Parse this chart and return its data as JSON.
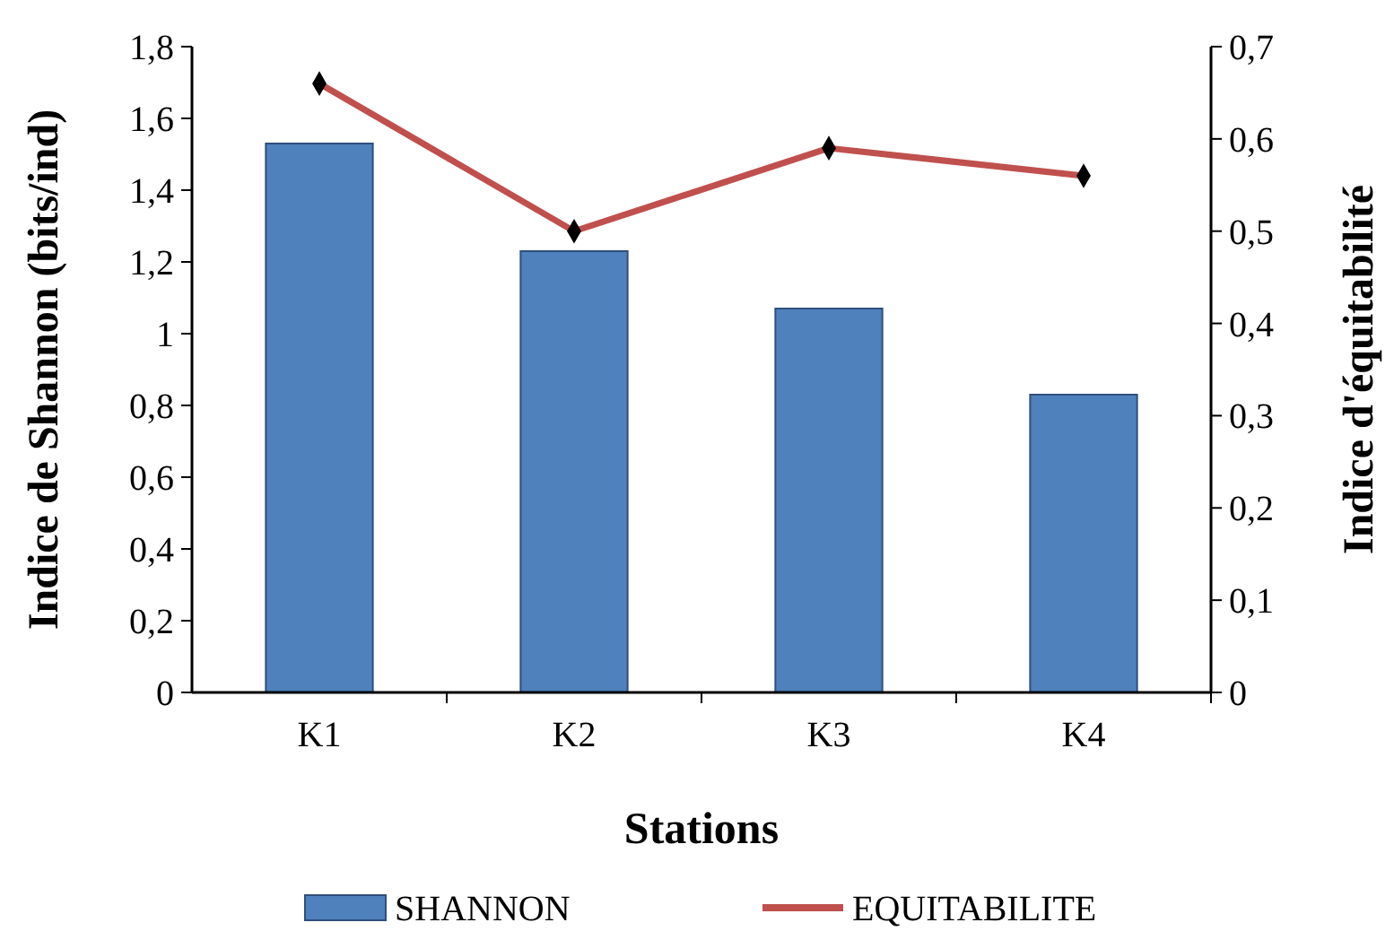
{
  "chart_data": {
    "type": "bar",
    "xlabel": "Stations",
    "ylabel": "Indice de Shannon (bits/ind)",
    "y2label": "Indice d'équitabilité",
    "categories": [
      "K1",
      "K2",
      "K3",
      "K4"
    ],
    "series": [
      {
        "name": "SHANNON",
        "color": "#4f81bd",
        "values": [
          1.53,
          1.23,
          1.07,
          0.83
        ]
      },
      {
        "name": "EQUITABILITE",
        "type": "line",
        "axis": "y2",
        "color": "#c0504d",
        "marker": "diamond",
        "values": [
          0.66,
          0.5,
          0.59,
          0.56
        ]
      }
    ],
    "ylim": [
      0,
      1.8
    ],
    "yticks": [
      0,
      {
        "value": 0.2,
        "label": "0,2"
      },
      {
        "value": 0.4,
        "label": "0,4"
      },
      {
        "value": 0.6,
        "label": "0,6"
      },
      {
        "value": 0.8,
        "label": "0,8"
      },
      1,
      {
        "value": 1.2,
        "label": "1,2"
      },
      {
        "value": 1.4,
        "label": "1,4"
      },
      {
        "value": 1.6,
        "label": "1,6"
      },
      {
        "value": 1.8,
        "label": "1,8"
      }
    ],
    "y2lim": [
      0,
      0.7
    ],
    "y2ticks": [
      0,
      {
        "value": 0.1,
        "label": "0,1"
      },
      {
        "value": 0.2,
        "label": "0,2"
      },
      {
        "value": 0.3,
        "label": "0,3"
      },
      {
        "value": 0.4,
        "label": "0,4"
      },
      {
        "value": 0.5,
        "label": "0,5"
      },
      {
        "value": 0.6,
        "label": "0,6"
      },
      {
        "value": 0.7,
        "label": "0,7"
      }
    ],
    "grid": false,
    "legend": "bottom"
  }
}
